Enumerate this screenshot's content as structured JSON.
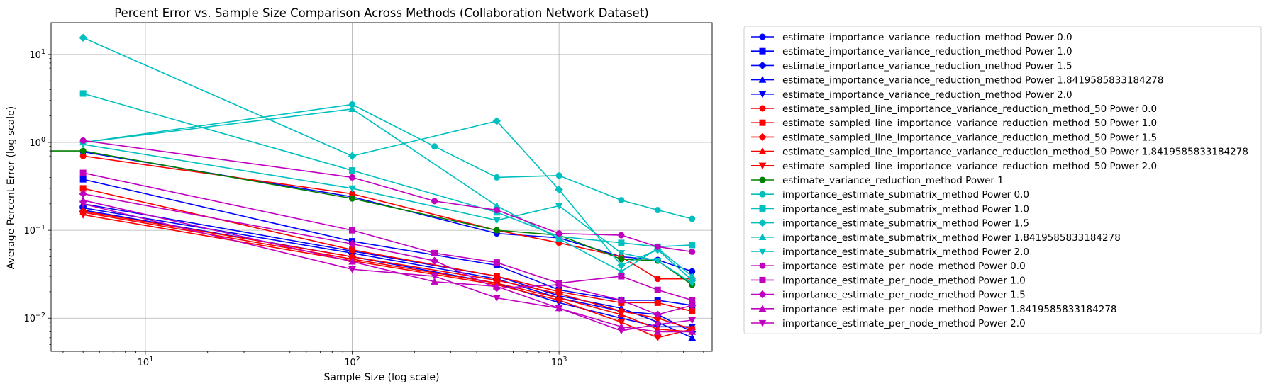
{
  "chart_data": {
    "type": "line",
    "title": "Percent Error vs. Sample Size Comparison Across Methods (Collaboration Network Dataset)",
    "xlabel": "Sample Size (log scale)",
    "ylabel": "Average Percent Error (log scale)",
    "xscale": "log",
    "yscale": "log",
    "xlim": [
      3.5,
      5500
    ],
    "ylim": [
      0.0042,
      23
    ],
    "grid": true,
    "legend_position": "outside-right",
    "x_ticks": [
      {
        "value": 10,
        "base": "10",
        "exp": "1"
      },
      {
        "value": 100,
        "base": "10",
        "exp": "2"
      },
      {
        "value": 1000,
        "base": "10",
        "exp": "3"
      }
    ],
    "y_ticks": [
      {
        "value": 0.01,
        "base": "10",
        "exp": "−2"
      },
      {
        "value": 0.1,
        "base": "10",
        "exp": "−1"
      },
      {
        "value": 1,
        "base": "10",
        "exp": "0"
      },
      {
        "value": 10,
        "base": "10",
        "exp": "1"
      }
    ],
    "series": [
      {
        "name": "estimate_importance_variance_reduction_method Power 0.0",
        "color": "#0000ff",
        "marker": "circle",
        "x": [
          5,
          100,
          500,
          1000,
          2000,
          3000,
          4400
        ],
        "y": [
          0.78,
          0.24,
          0.092,
          0.082,
          0.05,
          0.046,
          0.034
        ]
      },
      {
        "name": "estimate_importance_variance_reduction_method Power 1.0",
        "color": "#0000ff",
        "marker": "square",
        "x": [
          5,
          100,
          500,
          1000,
          2000,
          3000,
          4400
        ],
        "y": [
          0.38,
          0.075,
          0.04,
          0.021,
          0.016,
          0.016,
          0.014
        ]
      },
      {
        "name": "estimate_importance_variance_reduction_method Power 1.5",
        "color": "#0000ff",
        "marker": "diamond",
        "x": [
          5,
          100,
          500,
          1000,
          2000,
          3000,
          4400
        ],
        "y": [
          0.18,
          0.055,
          0.028,
          0.017,
          0.012,
          0.011,
          0.007
        ]
      },
      {
        "name": "estimate_importance_variance_reduction_method Power 1.8419585833184278",
        "color": "#0000ff",
        "marker": "triangle-up",
        "x": [
          5,
          100,
          500,
          1000,
          2000,
          3000,
          4400
        ],
        "y": [
          0.2,
          0.058,
          0.03,
          0.018,
          0.013,
          0.009,
          0.006
        ]
      },
      {
        "name": "estimate_importance_variance_reduction_method Power 2.0",
        "color": "#0000ff",
        "marker": "triangle-down",
        "x": [
          5,
          100,
          500,
          1000,
          2000,
          3000,
          4400
        ],
        "y": [
          0.17,
          0.05,
          0.025,
          0.015,
          0.01,
          0.008,
          0.008
        ]
      },
      {
        "name": "estimate_sampled_line_importance_variance_reduction_method_50 Power 0.0",
        "color": "#ff0000",
        "marker": "circle",
        "x": [
          5,
          100,
          500,
          1000,
          2000,
          3000,
          4400
        ],
        "y": [
          0.7,
          0.26,
          0.1,
          0.072,
          0.05,
          0.028,
          0.028
        ]
      },
      {
        "name": "estimate_sampled_line_importance_variance_reduction_method_50 Power 1.0",
        "color": "#ff0000",
        "marker": "square",
        "x": [
          5,
          100,
          500,
          1000,
          2000,
          3000,
          4400
        ],
        "y": [
          0.3,
          0.06,
          0.03,
          0.02,
          0.015,
          0.015,
          0.012
        ]
      },
      {
        "name": "estimate_sampled_line_importance_variance_reduction_method_50 Power 1.5",
        "color": "#ff0000",
        "marker": "diamond",
        "x": [
          5,
          100,
          500,
          1000,
          2000,
          3000,
          4400
        ],
        "y": [
          0.165,
          0.05,
          0.027,
          0.019,
          0.012,
          0.01,
          0.0075
        ]
      },
      {
        "name": "estimate_sampled_line_importance_variance_reduction_method_50 Power 1.8419585833184278",
        "color": "#ff0000",
        "marker": "triangle-up",
        "x": [
          5,
          100,
          500,
          1000,
          2000,
          3000,
          4400
        ],
        "y": [
          0.16,
          0.047,
          0.025,
          0.017,
          0.011,
          0.0075,
          0.007
        ]
      },
      {
        "name": "estimate_sampled_line_importance_variance_reduction_method_50 Power 2.0",
        "color": "#ff0000",
        "marker": "triangle-down",
        "x": [
          5,
          100,
          500,
          1000,
          2000,
          3000,
          4400
        ],
        "y": [
          0.15,
          0.045,
          0.024,
          0.016,
          0.009,
          0.006,
          0.0075
        ]
      },
      {
        "name": "estimate_variance_reduction_method Power 1",
        "color": "#008000",
        "marker": "circle",
        "x": [
          1,
          5,
          100,
          500,
          1000,
          2000,
          3000,
          4400
        ],
        "y": [
          0.8,
          0.8,
          0.23,
          0.1,
          0.088,
          0.047,
          0.045,
          0.024
        ]
      },
      {
        "name": "importance_estimate_submatrix_method Power 0.0",
        "color": "#00bfbf",
        "marker": "circle",
        "x": [
          5,
          100,
          250,
          500,
          1000,
          2000,
          3000,
          4400
        ],
        "y": [
          1.0,
          2.7,
          0.9,
          0.4,
          0.42,
          0.22,
          0.17,
          0.135
        ]
      },
      {
        "name": "importance_estimate_submatrix_method Power 1.0",
        "color": "#00bfbf",
        "marker": "square",
        "x": [
          5,
          100,
          500,
          1000,
          2000,
          3000,
          4400
        ],
        "y": [
          3.6,
          0.48,
          0.16,
          0.085,
          0.072,
          0.065,
          0.068
        ]
      },
      {
        "name": "importance_estimate_submatrix_method Power 1.5",
        "color": "#00bfbf",
        "marker": "diamond",
        "x": [
          5,
          100,
          500,
          1000,
          2000,
          3000,
          4400
        ],
        "y": [
          15.5,
          0.7,
          1.75,
          0.29,
          0.04,
          0.06,
          0.027
        ]
      },
      {
        "name": "importance_estimate_submatrix_method Power 1.8419585833184278",
        "color": "#00bfbf",
        "marker": "triangle-up",
        "x": [
          5,
          100,
          500,
          1000,
          2000,
          3000,
          4400
        ],
        "y": [
          1.0,
          2.4,
          0.19,
          0.08,
          0.034,
          0.062,
          0.03
        ]
      },
      {
        "name": "importance_estimate_submatrix_method Power 2.0",
        "color": "#00bfbf",
        "marker": "triangle-down",
        "x": [
          5,
          100,
          500,
          1000,
          2000,
          3000,
          4400
        ],
        "y": [
          0.95,
          0.3,
          0.13,
          0.19,
          0.055,
          0.045,
          0.025
        ]
      },
      {
        "name": "importance_estimate_per_node_method Power 0.0",
        "color": "#bf00bf",
        "marker": "circle",
        "x": [
          5,
          100,
          250,
          500,
          1000,
          2000,
          3000,
          4400
        ],
        "y": [
          1.05,
          0.4,
          0.215,
          0.17,
          0.092,
          0.088,
          0.065,
          0.057
        ]
      },
      {
        "name": "importance_estimate_per_node_method Power 1.0",
        "color": "#bf00bf",
        "marker": "square",
        "x": [
          5,
          100,
          250,
          500,
          1000,
          2000,
          3000,
          4400
        ],
        "y": [
          0.45,
          0.1,
          0.055,
          0.043,
          0.025,
          0.03,
          0.021,
          0.016
        ]
      },
      {
        "name": "importance_estimate_per_node_method Power 1.5",
        "color": "#bf00bf",
        "marker": "diamond",
        "x": [
          5,
          100,
          250,
          500,
          1000,
          2000,
          3000,
          4400
        ],
        "y": [
          0.26,
          0.07,
          0.045,
          0.022,
          0.024,
          0.016,
          0.011,
          0.014
        ]
      },
      {
        "name": "importance_estimate_per_node_method Power 1.8419585833184278",
        "color": "#bf00bf",
        "marker": "triangle-up",
        "x": [
          5,
          100,
          250,
          500,
          1000,
          2000,
          3000,
          4400
        ],
        "y": [
          0.22,
          0.044,
          0.026,
          0.023,
          0.013,
          0.008,
          0.007,
          0.007
        ]
      },
      {
        "name": "importance_estimate_per_node_method Power 2.0",
        "color": "#bf00bf",
        "marker": "triangle-down",
        "x": [
          5,
          100,
          250,
          500,
          1000,
          2000,
          3000,
          4400
        ],
        "y": [
          0.2,
          0.036,
          0.03,
          0.017,
          0.013,
          0.0072,
          0.0085,
          0.0095
        ]
      }
    ]
  }
}
